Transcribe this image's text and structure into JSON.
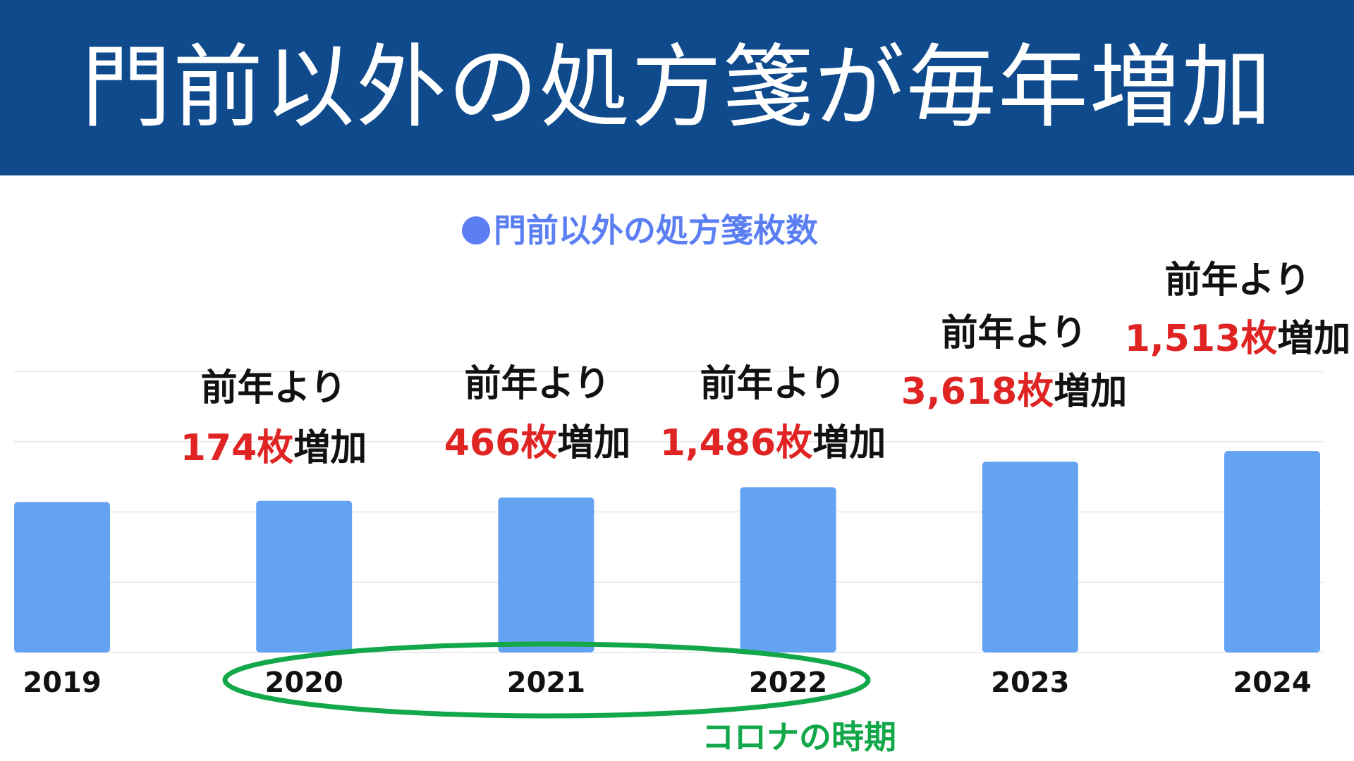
{
  "title": "門前以外の処方箋が毎年増加",
  "colors": {
    "header_bg": "#0e4a8c",
    "bar": "#64a3f2",
    "legend": "#5b7ff2",
    "increase_number": "#e02424",
    "corona": "#12a84a",
    "gridline": "#e6e6e6"
  },
  "chart_data": {
    "type": "bar",
    "categories": [
      "2019",
      "2020",
      "2021",
      "2022",
      "2023",
      "2024"
    ],
    "series": [
      {
        "name": "門前以外の処方箋枚数",
        "values": [
          21400,
          21574,
          22040,
          23526,
          27144,
          28657
        ]
      }
    ],
    "ylim": [
      0,
      40000
    ],
    "grid": true,
    "legend": {
      "marker": "●",
      "label": "門前以外の処方箋枚数",
      "position": "top-center"
    },
    "annotations": [
      {
        "category": "2020",
        "line1": "前年より",
        "number": "174枚",
        "suffix": "増加"
      },
      {
        "category": "2021",
        "line1": "前年より",
        "number": "466枚",
        "suffix": "増加"
      },
      {
        "category": "2022",
        "line1": "前年より",
        "number": "1,486枚",
        "suffix": "増加"
      },
      {
        "category": "2023",
        "line1": "前年より",
        "number": "3,618枚",
        "suffix": "増加"
      },
      {
        "category": "2024",
        "line1": "前年より",
        "number": "1,513枚",
        "suffix": "増加"
      }
    ],
    "highlight": {
      "label": "コロナの時期",
      "categories": [
        "2020",
        "2021",
        "2022"
      ]
    }
  }
}
